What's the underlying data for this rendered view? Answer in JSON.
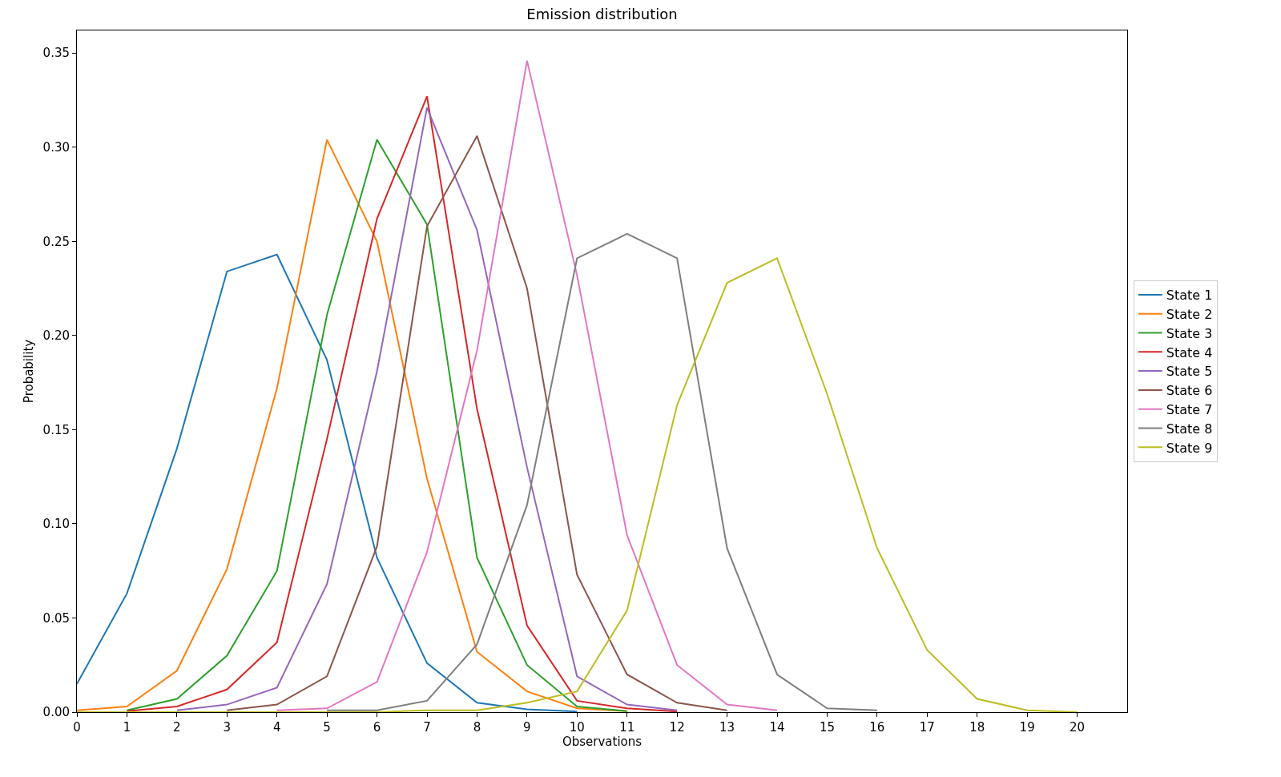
{
  "chart_data": {
    "type": "line",
    "title": "Emission distribution",
    "xlabel": "Observations",
    "ylabel": "Probability",
    "x": [
      0,
      1,
      2,
      3,
      4,
      5,
      6,
      7,
      8,
      9,
      10,
      11,
      12,
      13,
      14,
      15,
      16,
      17,
      18,
      19,
      20
    ],
    "series": [
      {
        "name": "State 1",
        "color": "#1f77b4",
        "values": [
          0.015,
          0.063,
          0.14,
          0.234,
          0.243,
          0.187,
          0.082,
          0.026,
          0.005,
          0.0015,
          0.0003,
          null,
          null,
          null,
          null,
          null,
          null,
          null,
          null,
          null,
          null
        ]
      },
      {
        "name": "State 2",
        "color": "#ff7f0e",
        "values": [
          0.001,
          0.003,
          0.022,
          0.076,
          0.172,
          0.304,
          0.25,
          0.124,
          0.032,
          0.011,
          0.002,
          0.0005,
          null,
          null,
          null,
          null,
          null,
          null,
          null,
          null,
          null
        ]
      },
      {
        "name": "State 3",
        "color": "#2ca02c",
        "values": [
          null,
          0.001,
          0.007,
          0.03,
          0.075,
          0.211,
          0.304,
          0.259,
          0.082,
          0.025,
          0.003,
          0.0005,
          null,
          null,
          null,
          null,
          null,
          null,
          null,
          null,
          null
        ]
      },
      {
        "name": "State 4",
        "color": "#d62728",
        "values": [
          null,
          0.0005,
          0.003,
          0.012,
          0.037,
          0.145,
          0.262,
          0.327,
          0.161,
          0.046,
          0.006,
          0.002,
          0.0003,
          null,
          null,
          null,
          null,
          null,
          null,
          null,
          null
        ]
      },
      {
        "name": "State 5",
        "color": "#9467bd",
        "values": [
          null,
          null,
          0.001,
          0.004,
          0.013,
          0.068,
          0.181,
          0.321,
          0.256,
          0.13,
          0.019,
          0.004,
          0.001,
          null,
          null,
          null,
          null,
          null,
          null,
          null,
          null
        ]
      },
      {
        "name": "State 6",
        "color": "#8c564b",
        "values": [
          null,
          null,
          null,
          0.001,
          0.004,
          0.019,
          0.088,
          0.258,
          0.306,
          0.225,
          0.073,
          0.02,
          0.005,
          0.001,
          null,
          null,
          null,
          null,
          null,
          null,
          null
        ]
      },
      {
        "name": "State 7",
        "color": "#e377c2",
        "values": [
          null,
          null,
          null,
          null,
          0.001,
          0.002,
          0.016,
          0.085,
          0.192,
          0.346,
          0.232,
          0.094,
          0.025,
          0.004,
          0.001,
          null,
          null,
          null,
          null,
          null,
          null
        ]
      },
      {
        "name": "State 8",
        "color": "#7f7f7f",
        "values": [
          null,
          null,
          null,
          null,
          null,
          0.001,
          0.001,
          0.006,
          0.036,
          0.11,
          0.241,
          0.254,
          0.241,
          0.087,
          0.02,
          0.002,
          0.001,
          null,
          null,
          null,
          null
        ]
      },
      {
        "name": "State 9",
        "color": "#bcbd22",
        "values": [
          0,
          0,
          0,
          0,
          0,
          0,
          0,
          0.001,
          0.001,
          0.005,
          0.011,
          0.054,
          0.163,
          0.228,
          0.241,
          0.169,
          0.087,
          0.033,
          0.007,
          0.001,
          0
        ]
      }
    ],
    "xlim": [
      0,
      21
    ],
    "ylim": [
      0,
      0.362
    ],
    "xticks": [
      0,
      1,
      2,
      3,
      4,
      5,
      6,
      7,
      8,
      9,
      10,
      11,
      12,
      13,
      14,
      15,
      16,
      17,
      18,
      19,
      20
    ],
    "yticks": [
      {
        "value": 0,
        "label": "0.00"
      },
      {
        "value": 0.05,
        "label": "0.05"
      },
      {
        "value": 0.1,
        "label": "0.10"
      },
      {
        "value": 0.15,
        "label": "0.15"
      },
      {
        "value": 0.2,
        "label": "0.20"
      },
      {
        "value": 0.25,
        "label": "0.25"
      },
      {
        "value": 0.3,
        "label": "0.30"
      },
      {
        "value": 0.35,
        "label": "0.35"
      }
    ],
    "grid": false,
    "legend": "right",
    "marker": "none",
    "line_style": "solid"
  }
}
